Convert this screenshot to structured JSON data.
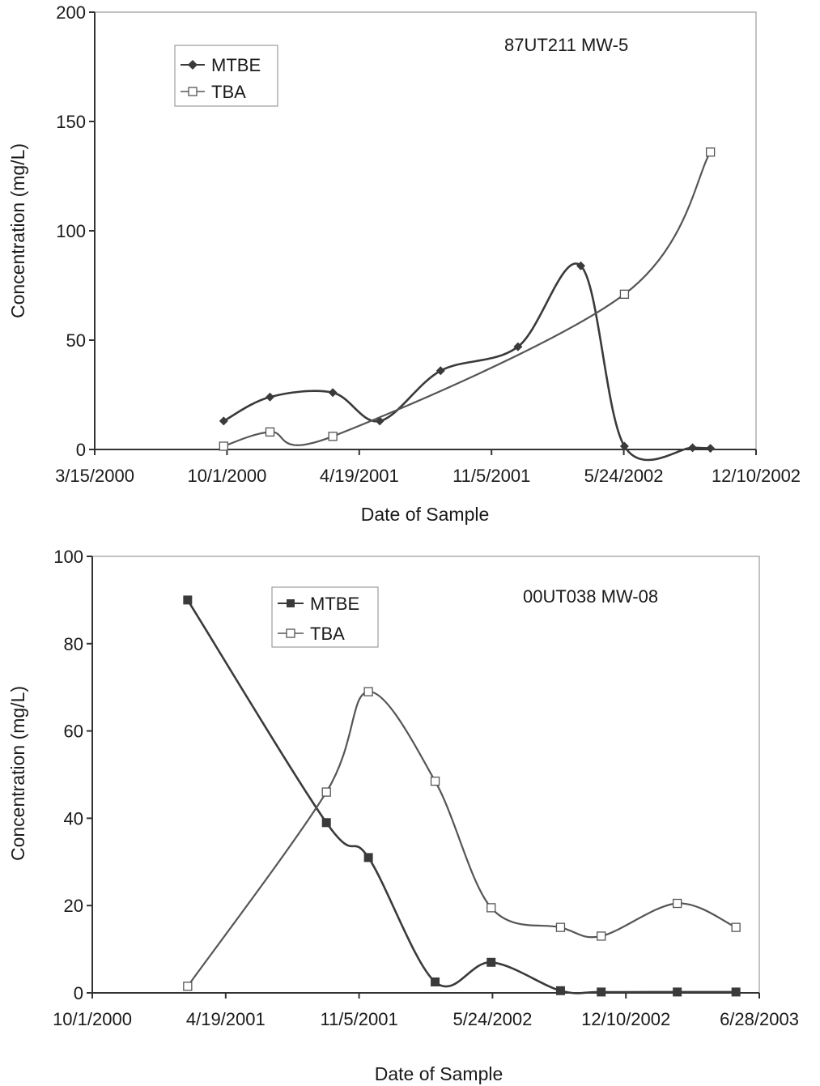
{
  "chart_data": [
    {
      "type": "line",
      "chart_label": "87UT211 MW-5",
      "xlabel": "Date of Sample",
      "ylabel": "Concentration (mg/L)",
      "xlim": [
        "3/15/2000",
        "12/10/2002"
      ],
      "x_ticks": [
        "3/15/2000",
        "10/1/2000",
        "4/19/2001",
        "11/5/2001",
        "5/24/2002",
        "12/10/2002"
      ],
      "ylim": [
        0,
        200
      ],
      "y_ticks": [
        "0",
        "50",
        "100",
        "150",
        "200"
      ],
      "legend_position": "top-left",
      "grid": false,
      "series": [
        {
          "name": "MTBE",
          "marker": "diamond-filled",
          "color": "#3a3a3a",
          "points": [
            {
              "x": "9/26/2000",
              "y": 13
            },
            {
              "x": "12/5/2000",
              "y": 24
            },
            {
              "x": "3/10/2001",
              "y": 26
            },
            {
              "x": "5/20/2001",
              "y": 13
            },
            {
              "x": "8/20/2001",
              "y": 36
            },
            {
              "x": "12/15/2001",
              "y": 47
            },
            {
              "x": "3/20/2002",
              "y": 84
            },
            {
              "x": "5/25/2002",
              "y": 1.5
            },
            {
              "x": "9/5/2002",
              "y": 0.8
            },
            {
              "x": "10/2/2002",
              "y": 0.5
            }
          ]
        },
        {
          "name": "TBA",
          "marker": "square-open",
          "color": "#555555",
          "points": [
            {
              "x": "9/26/2000",
              "y": 1.5
            },
            {
              "x": "12/5/2000",
              "y": 8
            },
            {
              "x": "3/10/2001",
              "y": 6
            },
            {
              "x": "5/25/2002",
              "y": 71
            },
            {
              "x": "10/2/2002",
              "y": 136
            }
          ]
        }
      ]
    },
    {
      "type": "line",
      "chart_label": "00UT038 MW-08",
      "xlabel": "Date of Sample",
      "ylabel": "Concentration (mg/L)",
      "xlim": [
        "10/1/2000",
        "6/28/2003"
      ],
      "x_ticks": [
        "10/1/2000",
        "4/19/2001",
        "11/5/2001",
        "5/24/2002",
        "12/10/2002",
        "6/28/2003"
      ],
      "ylim": [
        0,
        100
      ],
      "y_ticks": [
        "0",
        "20",
        "40",
        "60",
        "80",
        "100"
      ],
      "legend_position": "top-center",
      "grid": false,
      "series": [
        {
          "name": "MTBE",
          "marker": "square-filled",
          "color": "#3a3a3a",
          "points": [
            {
              "x": "2/21/2001",
              "y": 90
            },
            {
              "x": "9/17/2001",
              "y": 39
            },
            {
              "x": "11/19/2001",
              "y": 31
            },
            {
              "x": "2/27/2002",
              "y": 2.5
            },
            {
              "x": "5/22/2002",
              "y": 7
            },
            {
              "x": "9/3/2002",
              "y": 0.5
            },
            {
              "x": "11/3/2002",
              "y": 0.2
            },
            {
              "x": "2/25/2003",
              "y": 0.2
            },
            {
              "x": "5/24/2003",
              "y": 0.2
            }
          ]
        },
        {
          "name": "TBA",
          "marker": "square-open",
          "color": "#555555",
          "points": [
            {
              "x": "2/21/2001",
              "y": 1.5
            },
            {
              "x": "9/17/2001",
              "y": 46
            },
            {
              "x": "11/19/2001",
              "y": 69
            },
            {
              "x": "2/27/2002",
              "y": 48.5
            },
            {
              "x": "5/22/2002",
              "y": 19.5
            },
            {
              "x": "9/3/2002",
              "y": 15
            },
            {
              "x": "11/3/2002",
              "y": 13
            },
            {
              "x": "2/25/2003",
              "y": 20.5
            },
            {
              "x": "5/24/2003",
              "y": 15
            }
          ]
        }
      ]
    }
  ]
}
